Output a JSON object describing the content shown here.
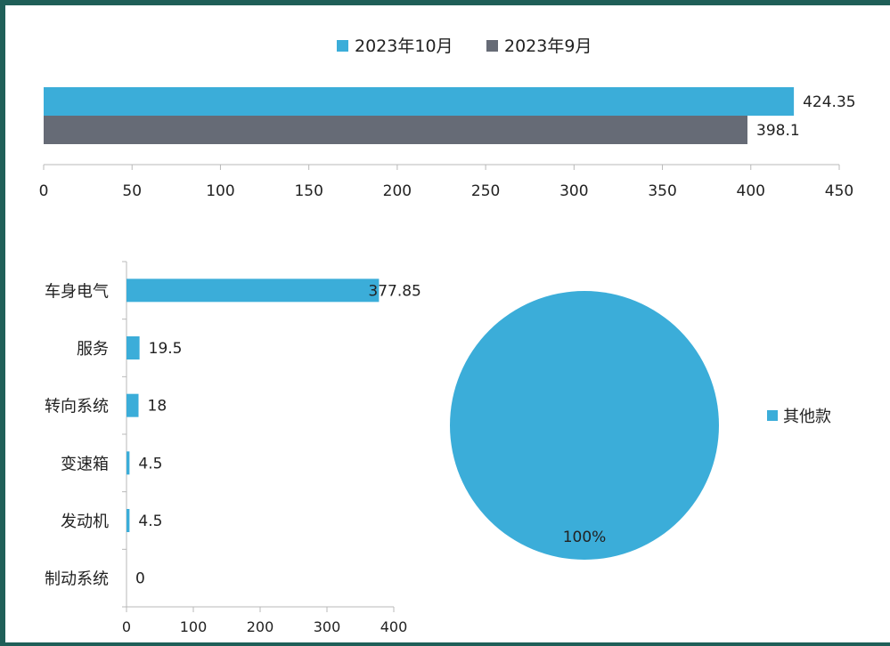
{
  "colors": {
    "oct": "#3badd9",
    "sep": "#666b76",
    "axis": "#b8b8b8",
    "frame": "#1f5f58"
  },
  "chart_data": [
    {
      "type": "bar",
      "orientation": "horizontal",
      "series": [
        {
          "name": "2023年10月",
          "values": [
            424.35
          ],
          "labels": [
            "424.35"
          ]
        },
        {
          "name": "2023年9月",
          "values": [
            398.1
          ],
          "labels": [
            "398.1"
          ]
        }
      ],
      "xlim": [
        0,
        450
      ],
      "xticks": [
        0,
        50,
        100,
        150,
        200,
        250,
        300,
        350,
        400,
        450
      ],
      "legend": "top",
      "grid": false
    },
    {
      "type": "bar",
      "orientation": "horizontal",
      "categories": [
        "车身电气",
        "服务",
        "转向系统",
        "变速箱",
        "发动机",
        "制动系统"
      ],
      "values": [
        377.85,
        19.5,
        18,
        4.5,
        4.5,
        0
      ],
      "labels": [
        "377.85",
        "19.5",
        "18",
        "4.5",
        "4.5",
        "0"
      ],
      "xlim": [
        0,
        400
      ],
      "xticks": [
        0,
        100,
        200,
        300,
        400
      ],
      "grid": false
    },
    {
      "type": "pie",
      "slices": [
        {
          "name": "其他款",
          "value": 100,
          "label": "100%"
        }
      ],
      "legend": "right"
    }
  ]
}
